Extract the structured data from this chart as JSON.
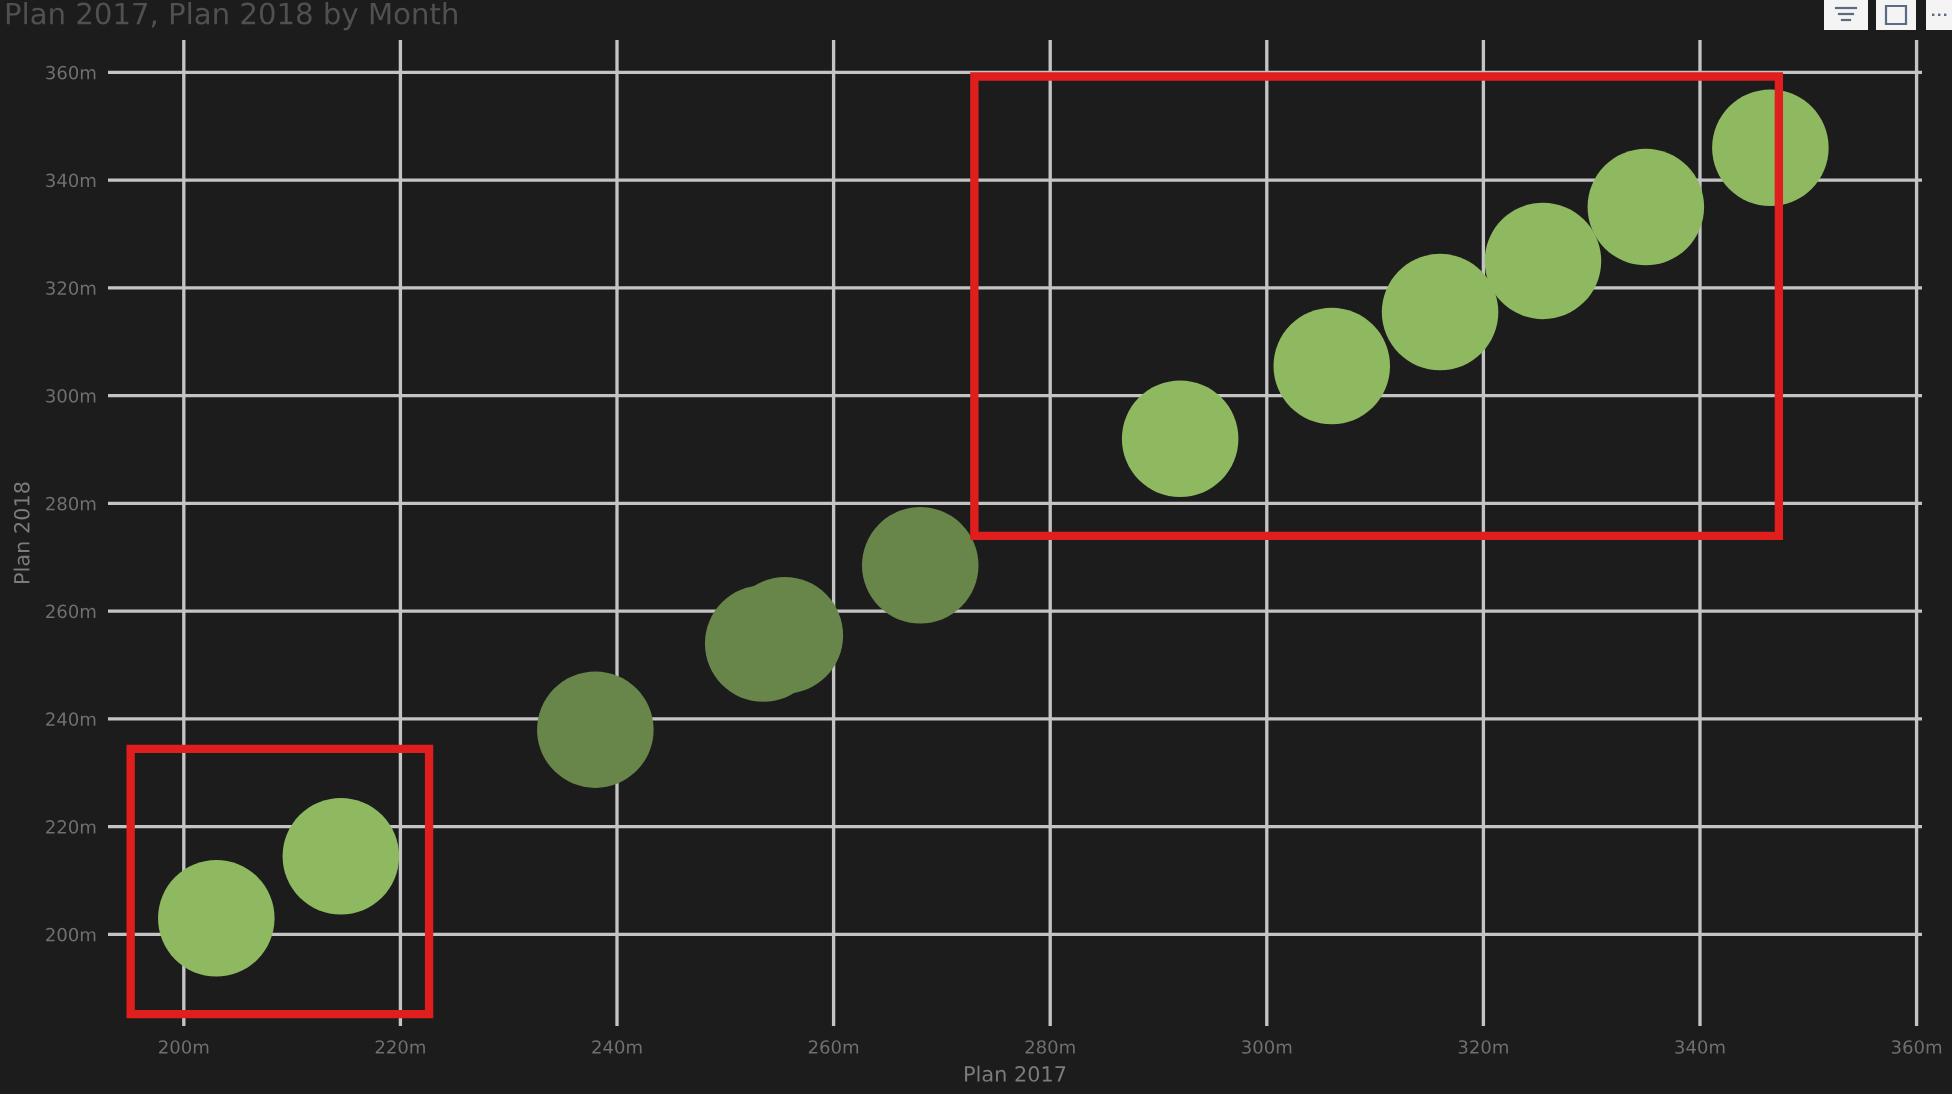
{
  "chart_data": {
    "type": "scatter",
    "title": "Plan 2017, Plan 2018 by Month",
    "xlabel": "Plan 2017",
    "ylabel": "Plan 2018",
    "x": [
      203,
      214.5,
      238,
      253.5,
      255.5,
      268,
      292,
      306,
      316,
      325.5,
      335,
      346.5
    ],
    "values": [
      203,
      214.5,
      238,
      254,
      255.5,
      268.5,
      292,
      305.5,
      315.5,
      325,
      335,
      346
    ],
    "colors": [
      "#8fb960",
      "#8fb960",
      "#68864a",
      "#68864a",
      "#68864a",
      "#68864a",
      "#8fb960",
      "#8fb960",
      "#8fb960",
      "#8fb960",
      "#8fb960",
      "#8fb960"
    ],
    "marker": "circle",
    "grid": true,
    "xlim": [
      193,
      360.5
    ],
    "ylim": [
      183,
      366
    ],
    "xticks": [
      {
        "value": 200,
        "label": "200m"
      },
      {
        "value": 220,
        "label": "220m"
      },
      {
        "value": 240,
        "label": "240m"
      },
      {
        "value": 260,
        "label": "260m"
      },
      {
        "value": 280,
        "label": "280m"
      },
      {
        "value": 300,
        "label": "300m"
      },
      {
        "value": 320,
        "label": "320m"
      },
      {
        "value": 340,
        "label": "340m"
      },
      {
        "value": 360,
        "label": "360m"
      }
    ],
    "yticks": [
      {
        "value": 200,
        "label": "200m"
      },
      {
        "value": 220,
        "label": "220m"
      },
      {
        "value": 240,
        "label": "240m"
      },
      {
        "value": 260,
        "label": "260m"
      },
      {
        "value": 280,
        "label": "280m"
      },
      {
        "value": 300,
        "label": "300m"
      },
      {
        "value": 320,
        "label": "320m"
      },
      {
        "value": 340,
        "label": "340m"
      },
      {
        "value": 360,
        "label": "360m"
      }
    ]
  }
}
